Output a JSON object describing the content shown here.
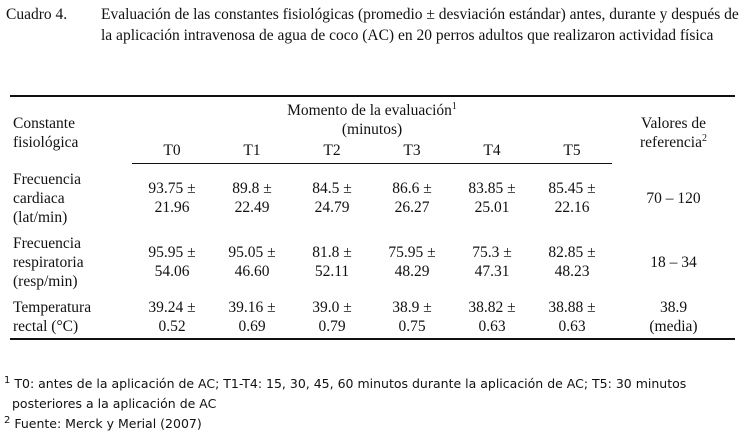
{
  "caption": {
    "label": "Cuadro 4.",
    "text": "Evaluación de las constantes fisiológicas (promedio ± desviación estándar) antes, durante y después de la aplicación intravenosa de agua de coco (AC) en 20 perros adultos que realizaron actividad física"
  },
  "table": {
    "header": {
      "constant": "Constante fisiológica",
      "moment": {
        "title": "Momento de la evaluación",
        "note": "1",
        "unit": "(minutos)"
      },
      "reference": {
        "title": "Valores de referencia",
        "note": "2"
      },
      "times": [
        "T0",
        "T1",
        "T2",
        "T3",
        "T4",
        "T5"
      ]
    },
    "rows": [
      {
        "label": [
          "Frecuencia",
          "cardiaca",
          "(lat/min)"
        ],
        "cells": [
          [
            "93.75 ±",
            "21.96"
          ],
          [
            "89.8 ±",
            "22.49"
          ],
          [
            "84.5 ±",
            "24.79"
          ],
          [
            "86.6 ±",
            "26.27"
          ],
          [
            "83.85 ±",
            "25.01"
          ],
          [
            "85.45 ±",
            "22.16"
          ]
        ],
        "reference": [
          "70 – 120"
        ]
      },
      {
        "label": [
          "Frecuencia",
          "respiratoria",
          "(resp/min)"
        ],
        "cells": [
          [
            "95.95 ±",
            "54.06"
          ],
          [
            "95.05 ±",
            "46.60"
          ],
          [
            "81.8 ±",
            "52.11"
          ],
          [
            "75.95 ±",
            "48.29"
          ],
          [
            "75.3 ±",
            "47.31"
          ],
          [
            "82.85 ±",
            "48.23"
          ]
        ],
        "reference": [
          "18 – 34"
        ]
      },
      {
        "label": [
          "Temperatura",
          "rectal (°C)"
        ],
        "cells": [
          [
            "39.24 ±",
            "0.52"
          ],
          [
            "39.16 ±",
            "0.69"
          ],
          [
            "39.0 ±",
            "0.79"
          ],
          [
            "38.9 ±",
            "0.75"
          ],
          [
            "38.82 ±",
            "0.63"
          ],
          [
            "38.88 ±",
            "0.63"
          ]
        ],
        "reference": [
          "38.9",
          "(media)"
        ]
      }
    ]
  },
  "footnotes": [
    {
      "marker": "1",
      "text": "T0: antes de la aplicación de AC; T1-T4: 15, 30, 45, 60 minutos durante la aplicación de AC; T5: 30 minutos posteriores a la aplicación de AC"
    },
    {
      "marker": "2",
      "text": "Fuente: Merck y Merial (2007)"
    }
  ]
}
